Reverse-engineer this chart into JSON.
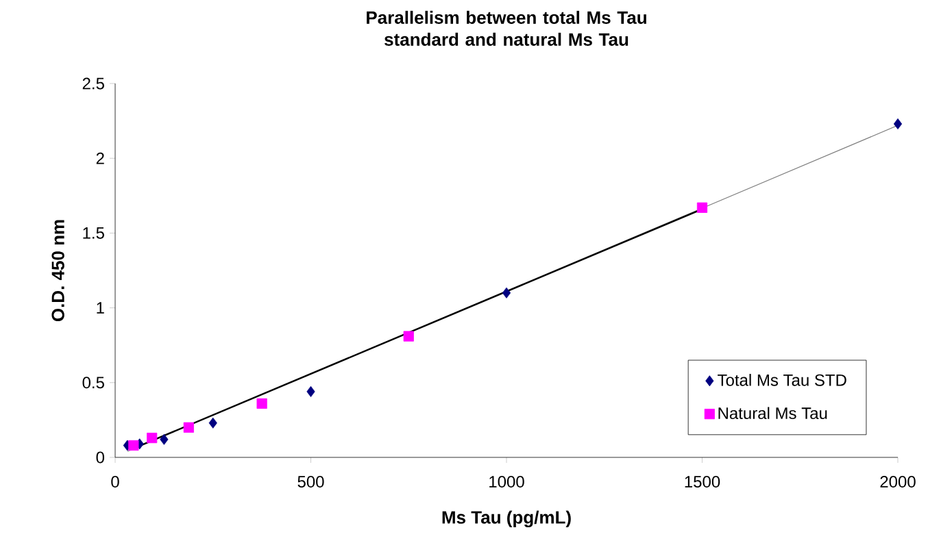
{
  "chart_data": {
    "type": "scatter",
    "title": "Parallelism between total Ms Tau standard and natural Ms Tau",
    "xlabel": "Ms Tau (pg/mL)",
    "ylabel": "O.D. 450 nm",
    "xlim": [
      0,
      2000
    ],
    "xticks": [
      0,
      500,
      1000,
      1500,
      2000
    ],
    "ylim": [
      0,
      2.5
    ],
    "yticks": [
      0,
      0.5,
      1,
      1.5,
      2,
      2.5
    ],
    "grid": false,
    "legend": "bottom right",
    "series": [
      {
        "name": "Total Ms Tau STD",
        "color": "#000080",
        "marker": "diamond",
        "x": [
          31.25,
          62.5,
          125,
          250,
          500,
          1000,
          2000
        ],
        "values": [
          0.08,
          0.09,
          0.12,
          0.23,
          0.44,
          1.1,
          2.23
        ]
      },
      {
        "name": "Natural Ms Tau",
        "color": "#ff00ff",
        "marker": "square",
        "x": [
          47,
          94,
          188,
          375,
          750,
          1500
        ],
        "values": [
          0.08,
          0.13,
          0.2,
          0.36,
          0.81,
          1.67
        ]
      },
      {
        "type": "line",
        "color": "#808080",
        "marker": "none",
        "x": [
          31.25,
          2000
        ],
        "values": [
          0.04,
          2.22
        ]
      },
      {
        "type": "line",
        "color": "#000000",
        "marker": "none",
        "x": [
          47,
          1500
        ],
        "values": [
          0.06,
          1.66
        ]
      }
    ]
  }
}
